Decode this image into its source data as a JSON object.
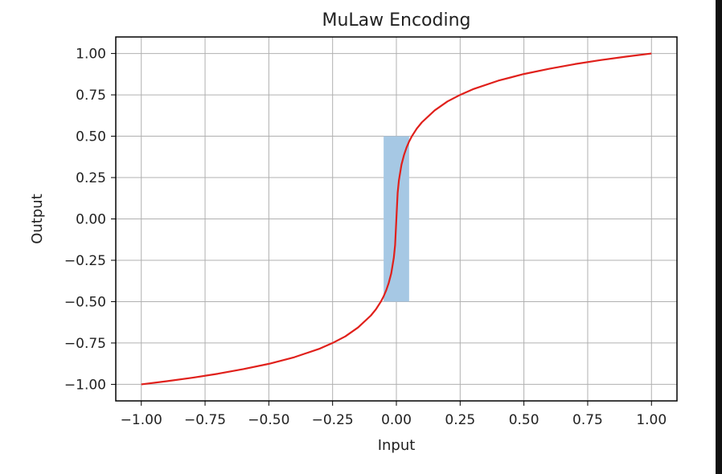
{
  "chart_data": {
    "type": "line",
    "title": "MuLaw Encoding",
    "xlabel": "Input",
    "ylabel": "Output",
    "xlim": [
      -1.1,
      1.1
    ],
    "ylim": [
      -1.1,
      1.1
    ],
    "grid": true,
    "xticks": [
      -1.0,
      -0.75,
      -0.5,
      -0.25,
      0.0,
      0.25,
      0.5,
      0.75,
      1.0
    ],
    "xtick_labels": [
      "−1.00",
      "−0.75",
      "−0.50",
      "−0.25",
      "0.00",
      "0.25",
      "0.50",
      "0.75",
      "1.00"
    ],
    "yticks": [
      -1.0,
      -0.75,
      -0.5,
      -0.25,
      0.0,
      0.25,
      0.5,
      0.75,
      1.0
    ],
    "ytick_labels": [
      "−1.00",
      "−0.75",
      "−0.50",
      "−0.25",
      "0.00",
      "0.25",
      "0.50",
      "0.75",
      "1.00"
    ],
    "highlight_region": {
      "x": [
        -0.05,
        0.05
      ],
      "y": [
        -0.5,
        0.5
      ],
      "color": "#a6c8e4"
    },
    "series": [
      {
        "color": "#e0201b",
        "mu": 255,
        "x": [
          -1.0,
          -0.9,
          -0.8,
          -0.7,
          -0.6,
          -0.5,
          -0.4,
          -0.3,
          -0.25,
          -0.2,
          -0.15,
          -0.1,
          -0.08,
          -0.06,
          -0.05,
          -0.04,
          -0.03,
          -0.02,
          -0.01,
          -0.005,
          0.0,
          0.005,
          0.01,
          0.02,
          0.03,
          0.04,
          0.05,
          0.06,
          0.08,
          0.1,
          0.15,
          0.2,
          0.25,
          0.3,
          0.4,
          0.5,
          0.6,
          0.7,
          0.8,
          0.9,
          1.0
        ],
        "y": [
          -1.0,
          -0.981,
          -0.96,
          -0.936,
          -0.908,
          -0.876,
          -0.836,
          -0.784,
          -0.75,
          -0.71,
          -0.656,
          -0.584,
          -0.546,
          -0.498,
          -0.468,
          -0.432,
          -0.387,
          -0.328,
          -0.234,
          -0.158,
          0.0,
          0.158,
          0.234,
          0.328,
          0.387,
          0.432,
          0.468,
          0.498,
          0.546,
          0.584,
          0.656,
          0.71,
          0.75,
          0.784,
          0.836,
          0.876,
          0.908,
          0.936,
          0.96,
          0.981,
          1.0
        ]
      }
    ]
  }
}
